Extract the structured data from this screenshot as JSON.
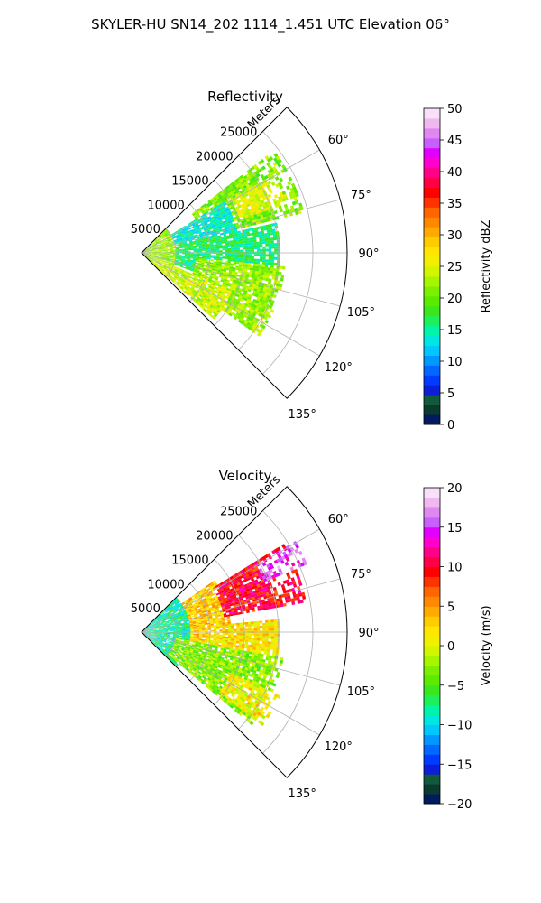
{
  "figure": {
    "title": "SKYLER-HU  SN14_202  1114_1.451 UTC Elevation 06°"
  },
  "chart_data": [
    {
      "type": "heatmap",
      "projection": "polar-sector",
      "title": "Reflectivity",
      "radial_label": "Meters",
      "theta_range_deg": [
        45,
        135
      ],
      "r_max_m": 30000,
      "radial_ticks": [
        "5000",
        "10000",
        "15000",
        "20000",
        "25000"
      ],
      "radial_tick_values": [
        5000,
        10000,
        15000,
        20000,
        25000
      ],
      "angle_ticks": [
        "60°",
        "75°",
        "90°",
        "105°",
        "120°",
        "135°"
      ],
      "angle_tick_values": [
        60,
        75,
        90,
        105,
        120,
        135
      ],
      "grid": true,
      "colorbar": {
        "label": "Reflectivity dBZ",
        "vmin": 0,
        "vmax": 50,
        "ticks": [
          "0",
          "5",
          "10",
          "15",
          "20",
          "25",
          "30",
          "35",
          "40",
          "45",
          "50"
        ],
        "colors": [
          "#001c5e",
          "#0b3b2e",
          "#125a3c",
          "#0d1fd6",
          "#003cff",
          "#0068ff",
          "#0098ff",
          "#00c8ff",
          "#00e6e0",
          "#00f5a8",
          "#1ef05a",
          "#3ce61e",
          "#5aeb00",
          "#7cf000",
          "#a8f500",
          "#d2f500",
          "#f0f000",
          "#ffe600",
          "#ffcc00",
          "#ffaa00",
          "#ff8800",
          "#ff6600",
          "#ff3300",
          "#ff0000",
          "#ff0044",
          "#ff0088",
          "#ff00cc",
          "#e100ff",
          "#c860ff",
          "#e088f0",
          "#f0b8f0",
          "#f8e0f8"
        ]
      },
      "field": {
        "units": "dBZ",
        "regions": [
          {
            "theta_deg": [
              45,
              135
            ],
            "r_m": [
              0,
              5000
            ],
            "value": 22
          },
          {
            "theta_deg": [
              52,
              76
            ],
            "r_m": [
              9000,
              24000
            ],
            "value": 21
          },
          {
            "theta_deg": [
              58,
              85
            ],
            "r_m": [
              5000,
              14000
            ],
            "value": 14
          },
          {
            "theta_deg": [
              78,
              110
            ],
            "r_m": [
              5000,
              20000
            ],
            "value": 16
          },
          {
            "theta_deg": [
              95,
              126
            ],
            "r_m": [
              8000,
              21000
            ],
            "value": 22
          },
          {
            "theta_deg": [
              112,
              133
            ],
            "r_m": [
              2000,
              14000
            ],
            "value": 24
          },
          {
            "theta_deg": [
              60,
              72
            ],
            "r_m": [
              15000,
              22000
            ],
            "value": 25
          }
        ]
      }
    },
    {
      "type": "heatmap",
      "projection": "polar-sector",
      "title": "Velocity",
      "radial_label": "Meters",
      "theta_range_deg": [
        45,
        135
      ],
      "r_max_m": 30000,
      "radial_ticks": [
        "5000",
        "10000",
        "15000",
        "20000",
        "25000"
      ],
      "radial_tick_values": [
        5000,
        10000,
        15000,
        20000,
        25000
      ],
      "angle_ticks": [
        "60°",
        "75°",
        "90°",
        "105°",
        "120°",
        "135°"
      ],
      "angle_tick_values": [
        60,
        75,
        90,
        105,
        120,
        135
      ],
      "grid": true,
      "colorbar": {
        "label": "Velocity (m/s)",
        "vmin": -20,
        "vmax": 20,
        "ticks": [
          "−20",
          "−15",
          "−10",
          "−5",
          "0",
          "5",
          "10",
          "15",
          "20"
        ],
        "colors": [
          "#001c5e",
          "#0b3b2e",
          "#125a3c",
          "#0d1fd6",
          "#003cff",
          "#0068ff",
          "#0098ff",
          "#00c8ff",
          "#00e6e0",
          "#00f5a8",
          "#1ef05a",
          "#3ce61e",
          "#5aeb00",
          "#7cf000",
          "#a8f500",
          "#d2f500",
          "#f0f000",
          "#ffe600",
          "#ffcc00",
          "#ffaa00",
          "#ff8800",
          "#ff6600",
          "#ff3300",
          "#ff0000",
          "#ff0044",
          "#ff0088",
          "#ff00cc",
          "#e100ff",
          "#c860ff",
          "#e088f0",
          "#f0b8f0",
          "#f8e0f8"
        ]
      },
      "field": {
        "units": "m/s",
        "regions": [
          {
            "theta_deg": [
              45,
              135
            ],
            "r_m": [
              0,
              7000
            ],
            "value": -8
          },
          {
            "theta_deg": [
              55,
              100
            ],
            "r_m": [
              7000,
              13000
            ],
            "value": 3
          },
          {
            "theta_deg": [
              58,
              80
            ],
            "r_m": [
              12000,
              24000
            ],
            "value": 10
          },
          {
            "theta_deg": [
              60,
              68
            ],
            "r_m": [
              19000,
              26000
            ],
            "value": 15
          },
          {
            "theta_deg": [
              85,
              108
            ],
            "r_m": [
              9000,
              20000
            ],
            "value": 2
          },
          {
            "theta_deg": [
              100,
              130
            ],
            "r_m": [
              5000,
              21000
            ],
            "value": -3
          },
          {
            "theta_deg": [
              115,
              128
            ],
            "r_m": [
              14000,
              22000
            ],
            "value": 1
          }
        ]
      }
    }
  ]
}
